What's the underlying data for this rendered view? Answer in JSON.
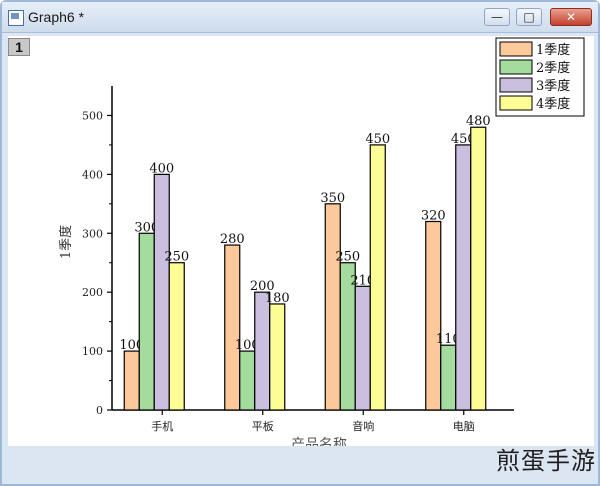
{
  "window": {
    "title": "Graph6 *",
    "layer_label": "1",
    "minimize_glyph": "—",
    "maximize_glyph": "□",
    "close_glyph": "✕"
  },
  "watermark": "煎蛋手游",
  "chart_data": {
    "type": "bar",
    "categories": [
      "手机",
      "平板",
      "音响",
      "电脑"
    ],
    "series": [
      {
        "name": "1季度",
        "values": [
          100,
          280,
          350,
          320
        ],
        "color": "#fdc99b"
      },
      {
        "name": "2季度",
        "values": [
          300,
          100,
          250,
          110
        ],
        "color": "#a3dc9d"
      },
      {
        "name": "3季度",
        "values": [
          400,
          200,
          210,
          450
        ],
        "color": "#cbbfe0"
      },
      {
        "name": "4季度",
        "values": [
          250,
          180,
          450,
          480
        ],
        "color": "#fdfd96"
      }
    ],
    "title": "",
    "xlabel": "产品名称",
    "ylabel": "1季度",
    "ylim": [
      0,
      550
    ],
    "yticks": [
      0,
      100,
      200,
      300,
      400,
      500
    ],
    "legend_position": "top-right",
    "grid": false,
    "data_labels": true
  }
}
